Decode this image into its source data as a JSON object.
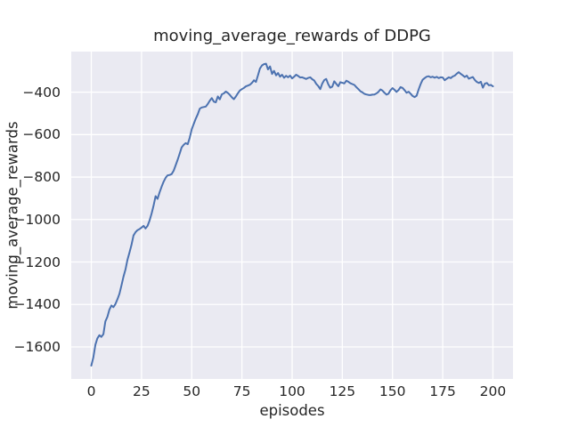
{
  "chart_data": {
    "type": "line",
    "title": "moving_average_rewards of DDPG",
    "xlabel": "episodes",
    "ylabel": "moving_average_rewards",
    "x_ticks": [
      0,
      25,
      50,
      75,
      100,
      125,
      150,
      175,
      200
    ],
    "y_ticks": [
      -400,
      -600,
      -800,
      -1000,
      -1200,
      -1400,
      -1600
    ],
    "xlim": [
      -10,
      210
    ],
    "ylim": [
      -1751,
      -209
    ],
    "grid": true,
    "legend": "none",
    "style": {
      "figure_background": "#ffffff",
      "axes_background": "#eaeaf2",
      "grid_color": "#ffffff",
      "line_color": "#4c72b0",
      "text_color": "#262626"
    },
    "series": [
      {
        "name": "moving_average_rewards",
        "color": "#4c72b0",
        "x_start": 0,
        "x_step": 1,
        "values": [
          -1688,
          -1650,
          -1590,
          -1560,
          -1545,
          -1553,
          -1540,
          -1480,
          -1458,
          -1425,
          -1405,
          -1413,
          -1398,
          -1375,
          -1350,
          -1310,
          -1270,
          -1235,
          -1190,
          -1155,
          -1120,
          -1075,
          -1060,
          -1050,
          -1045,
          -1038,
          -1030,
          -1042,
          -1030,
          -1005,
          -972,
          -935,
          -890,
          -903,
          -872,
          -845,
          -822,
          -803,
          -792,
          -790,
          -786,
          -770,
          -745,
          -718,
          -690,
          -660,
          -648,
          -640,
          -645,
          -615,
          -575,
          -550,
          -525,
          -505,
          -478,
          -472,
          -470,
          -468,
          -456,
          -440,
          -428,
          -445,
          -448,
          -420,
          -434,
          -410,
          -406,
          -397,
          -404,
          -413,
          -425,
          -433,
          -420,
          -405,
          -392,
          -386,
          -380,
          -373,
          -369,
          -365,
          -356,
          -344,
          -352,
          -320,
          -288,
          -274,
          -268,
          -266,
          -293,
          -279,
          -314,
          -300,
          -321,
          -310,
          -327,
          -318,
          -332,
          -323,
          -330,
          -322,
          -335,
          -327,
          -318,
          -324,
          -331,
          -330,
          -334,
          -338,
          -333,
          -330,
          -339,
          -345,
          -361,
          -371,
          -386,
          -360,
          -343,
          -338,
          -363,
          -379,
          -374,
          -349,
          -361,
          -372,
          -353,
          -356,
          -359,
          -346,
          -351,
          -358,
          -362,
          -366,
          -376,
          -386,
          -396,
          -401,
          -408,
          -411,
          -413,
          -414,
          -412,
          -411,
          -406,
          -399,
          -387,
          -393,
          -403,
          -412,
          -407,
          -391,
          -381,
          -389,
          -399,
          -390,
          -376,
          -380,
          -391,
          -403,
          -398,
          -407,
          -418,
          -423,
          -417,
          -388,
          -362,
          -342,
          -334,
          -327,
          -325,
          -330,
          -327,
          -332,
          -328,
          -334,
          -330,
          -331,
          -344,
          -337,
          -330,
          -334,
          -326,
          -322,
          -313,
          -306,
          -314,
          -321,
          -329,
          -322,
          -337,
          -332,
          -329,
          -343,
          -352,
          -357,
          -351,
          -379,
          -360,
          -357,
          -368,
          -366,
          -373
        ]
      }
    ]
  }
}
